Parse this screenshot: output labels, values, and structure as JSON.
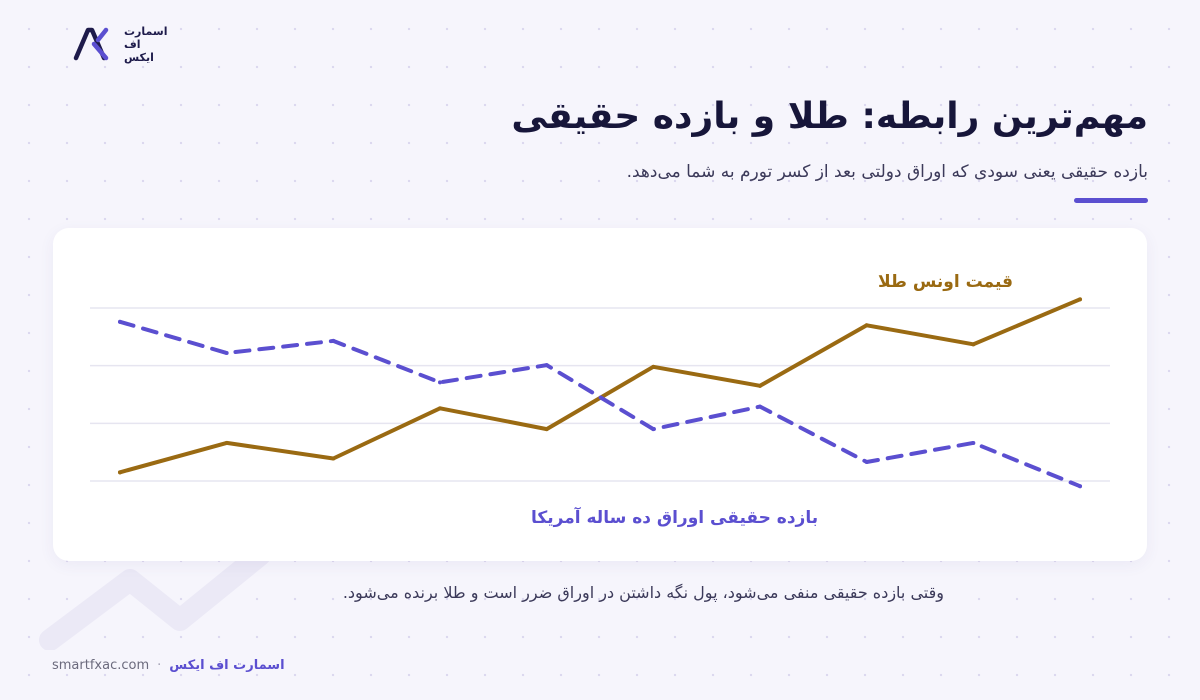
{
  "brand": {
    "logo_lines": [
      "اسمارت",
      "اف",
      "ایکس"
    ],
    "logo_icon": "smartfx-logo-icon",
    "footer_name": "اسمارت اف ایکس",
    "url": "smartfxac.com",
    "separator": "·"
  },
  "header": {
    "title": "مهم‌ترین رابطه: طلا و بازده حقیقی",
    "subtitle": "بازده حقیقی یعنی سودی که اوراق دولتی بعد از کسر تورم به شما می‌دهد."
  },
  "footnote": "وقتی بازده حقیقی منفی می‌شود، پول نگه داشتن در اوراق ضرر است و طلا برنده می‌شود.",
  "colors": {
    "accent": "#5b4fd0",
    "gold": "#9a6a12",
    "title": "#17163a",
    "background": "#f6f5fc"
  },
  "chart_data": {
    "type": "line",
    "title": "",
    "xlabel": "",
    "ylabel": "",
    "x": [
      1,
      2,
      3,
      4,
      5,
      6,
      7,
      8,
      9,
      10
    ],
    "ylim": [
      0,
      100
    ],
    "grid": true,
    "series": [
      {
        "name": "قیمت اونس طلا",
        "color": "#9a6a12",
        "style": "solid",
        "values": [
          5,
          22,
          13,
          42,
          30,
          66,
          55,
          90,
          79,
          105
        ]
      },
      {
        "name": "بازده حقیقی اوراق ده ساله آمریکا",
        "color": "#5b4fd0",
        "style": "dashed",
        "values": [
          92,
          74,
          81,
          57,
          67,
          30,
          43,
          11,
          22,
          -3
        ]
      }
    ]
  }
}
